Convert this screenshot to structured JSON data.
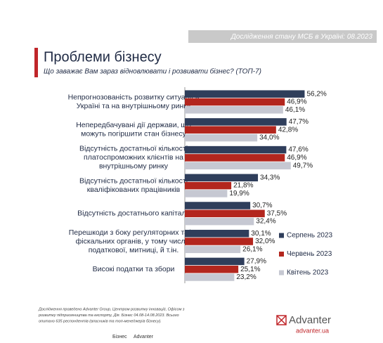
{
  "chart_data": {
    "type": "hbar",
    "header": "Дослідження стану МСБ в Україні: 08.2023",
    "title": "Проблеми бізнесу",
    "subtitle": "Що заважає Вам зараз відновлювати і розвивати бізнес? (ТОП-7)",
    "categories": [
      [
        "Непрогнозованість розвитку ситуації в",
        "Україні та на внутрішньому ринку"
      ],
      [
        "Непередбачувані дії держави, що",
        "можуть погіршити стан бізнесу"
      ],
      [
        "Відсутність достатньої кількості",
        "платоспроможних клієнтів на",
        "внутрішньому ринку"
      ],
      [
        "Відсутність достатньої кількості",
        "кваліфікованих працівників"
      ],
      [
        "Відсутність достатнього капіталу"
      ],
      [
        "Перешкоди з боку регуляторних та/чи",
        "фіскальних органів, у тому числі -",
        "податкової, митниці, й т.ін."
      ],
      [
        "Високі податки та збори"
      ]
    ],
    "series": [
      {
        "name": "Серпень 2023",
        "color": "#2f3e5b",
        "values": [
          56.2,
          47.7,
          47.6,
          34.3,
          30.7,
          30.1,
          27.9
        ],
        "value_labels": [
          "56,2%",
          "47,7%",
          "47,6%",
          "34,3%",
          "30,7%",
          "30,1%",
          "27,9%"
        ]
      },
      {
        "name": "Червень 2023",
        "color": "#b3261e",
        "values": [
          46.9,
          42.8,
          46.9,
          21.8,
          37.5,
          32.0,
          25.1
        ],
        "value_labels": [
          "46,9%",
          "42,8%",
          "46,9%",
          "21,8%",
          "37,5%",
          "32,0%",
          "25,1%"
        ]
      },
      {
        "name": "Квітень 2023",
        "color": "#c6c8d2",
        "values": [
          46.1,
          34.0,
          49.7,
          19.9,
          32.4,
          26.1,
          23.2
        ],
        "value_labels": [
          "46,1%",
          "34,0%",
          "49,7%",
          "19,9%",
          "32,4%",
          "26,1%",
          "23,2%"
        ]
      }
    ],
    "xlim": [
      0,
      60
    ],
    "legend": "right",
    "source_note": [
      "Дослідження проведено Advanter Group, Центром розвитку інновацій, Офісом з",
      "розвитку підприємництва та експорту, Дія. Бізнес 04.08-14.08.2023. Всього",
      "опитано 635 респондентів (власників та топ-менеджерів бізнесу)."
    ],
    "footer_logos": [
      "Бізнес",
      "Advanter"
    ],
    "brand": "Advanter",
    "brand_url": "advanter.ua"
  }
}
